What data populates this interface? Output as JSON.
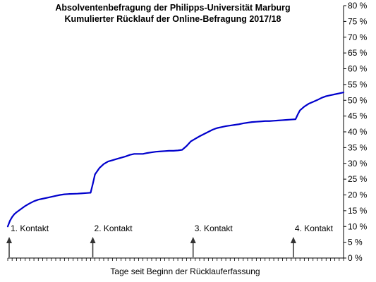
{
  "chart_data": {
    "type": "line",
    "title": "Absolventenbefragung der Philipps-Universität  Marburg",
    "subtitle": "Kumulierter  Rücklauf der Online-Befragung 2017/18",
    "xlabel": "Tage seit Beginn  der Rücklauferfassung",
    "ylabel": "",
    "ylim": [
      0,
      80
    ],
    "y_ticks": [
      "0 %",
      "5 %",
      "10 %",
      "15 %",
      "20 %",
      "25 %",
      "30 %",
      "35 %",
      "40 %",
      "45 %",
      "50 %",
      "55 %",
      "60 %",
      "65 %",
      "70 %",
      "75 %",
      "80 %"
    ],
    "y_tick_values": [
      0,
      5,
      10,
      15,
      20,
      25,
      30,
      35,
      40,
      45,
      50,
      55,
      60,
      65,
      70,
      75,
      80
    ],
    "x_range": [
      0,
      77
    ],
    "grid": false,
    "line_color": "#0000cc",
    "series": [
      {
        "x": [
          0,
          0.5,
          1,
          1.5,
          2,
          3,
          4,
          5,
          6,
          7,
          8,
          9,
          10,
          11,
          12,
          13,
          14,
          15,
          16,
          17,
          18,
          19,
          19.5,
          20,
          21,
          22,
          23,
          24,
          25,
          26,
          27,
          28,
          29,
          30,
          31,
          32,
          33,
          34,
          35,
          36,
          37,
          38,
          39,
          40,
          41,
          42,
          43,
          44,
          45,
          46,
          47,
          48,
          49,
          50,
          51,
          52,
          53,
          54,
          55,
          56,
          57,
          58,
          59,
          60,
          61,
          62,
          63,
          64,
          65,
          66,
          66.5,
          67,
          68,
          69,
          70,
          71,
          72,
          73,
          74,
          75,
          76,
          77
        ],
        "values": [
          10,
          11.8,
          13,
          13.9,
          14.5,
          15.5,
          16.5,
          17.3,
          18,
          18.5,
          18.8,
          19.1,
          19.4,
          19.7,
          20,
          20.2,
          20.3,
          20.35,
          20.4,
          20.5,
          20.6,
          20.7,
          23.5,
          26.5,
          28.5,
          29.8,
          30.6,
          31,
          31.4,
          31.8,
          32.2,
          32.7,
          33,
          33,
          33,
          33.3,
          33.5,
          33.7,
          33.8,
          33.9,
          34,
          34,
          34.1,
          34.3,
          35.5,
          37,
          37.8,
          38.6,
          39.3,
          40,
          40.7,
          41.2,
          41.5,
          41.8,
          42,
          42.2,
          42.4,
          42.7,
          42.9,
          43.1,
          43.2,
          43.3,
          43.4,
          43.4,
          43.5,
          43.6,
          43.7,
          43.8,
          43.9,
          44,
          45.5,
          46.8,
          48,
          48.9,
          49.5,
          50.1,
          50.8,
          51.3,
          51.6,
          51.9,
          52.2,
          52.5
        ]
      }
    ],
    "annotations": [
      {
        "label": "1. Kontakt",
        "x": 0
      },
      {
        "label": "2. Kontakt",
        "x": 19.5
      },
      {
        "label": "3. Kontakt",
        "x": 42.5
      },
      {
        "label": "4. Kontakt",
        "x": 65.5
      }
    ]
  }
}
